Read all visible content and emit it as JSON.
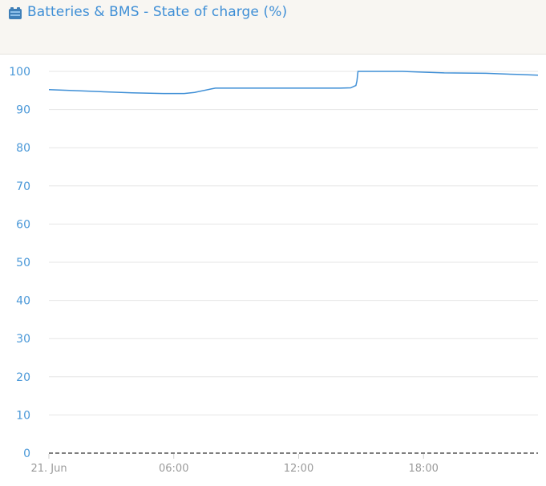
{
  "header": {
    "title": "Batteries & BMS - State of charge (%)",
    "icon": "battery-icon",
    "accent_color": "#3f8fd6"
  },
  "chart_data": {
    "type": "line",
    "title": "Batteries & BMS - State of charge (%)",
    "xlabel": "",
    "ylabel": "",
    "ylim": [
      0,
      100
    ],
    "yticks": [
      0,
      10,
      20,
      30,
      40,
      50,
      60,
      70,
      80,
      90,
      100
    ],
    "xlim_hours": [
      0,
      23.5
    ],
    "xticks": [
      {
        "hour": 0,
        "label": "21. Jun"
      },
      {
        "hour": 6,
        "label": "06:00"
      },
      {
        "hour": 12,
        "label": "12:00"
      },
      {
        "hour": 18,
        "label": "18:00"
      }
    ],
    "grid": true,
    "series": [
      {
        "color": "#3f8fd6",
        "points": [
          [
            0,
            95.2
          ],
          [
            2,
            94.8
          ],
          [
            4,
            94.4
          ],
          [
            5.5,
            94.2
          ],
          [
            6.5,
            94.2
          ],
          [
            7,
            94.5
          ],
          [
            7.8,
            95.4
          ],
          [
            8,
            95.6
          ],
          [
            10,
            95.6
          ],
          [
            12,
            95.6
          ],
          [
            14,
            95.6
          ],
          [
            14.5,
            95.7
          ],
          [
            14.75,
            96.3
          ],
          [
            14.8,
            97.5
          ],
          [
            14.85,
            100
          ],
          [
            17,
            100
          ],
          [
            18,
            99.8
          ],
          [
            19,
            99.6
          ],
          [
            21,
            99.5
          ],
          [
            22.5,
            99.2
          ],
          [
            23.5,
            99.0
          ]
        ]
      }
    ]
  }
}
